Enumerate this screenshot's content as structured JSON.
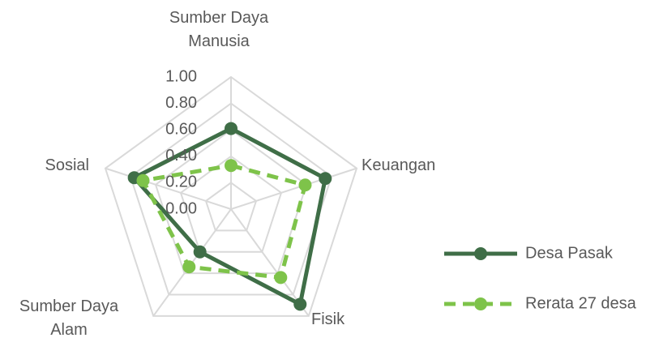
{
  "chart_data": {
    "type": "radar",
    "categories": [
      "Sumber Daya Manusia",
      "Keuangan",
      "Fisik",
      "Sumber Daya Alam",
      "Sosial"
    ],
    "series": [
      {
        "name": "Desa Pasak",
        "color": "#3f6e47",
        "values": [
          0.61,
          0.75,
          0.89,
          0.4,
          0.77
        ]
      },
      {
        "name": "Rerata 27 desa",
        "color": "#7ec34a",
        "values": [
          0.33,
          0.59,
          0.64,
          0.54,
          0.7
        ],
        "dashed": true
      }
    ],
    "ylim": [
      0,
      1
    ],
    "yticks": [
      {
        "value": 0,
        "label": "0.00"
      },
      {
        "value": 0.2,
        "label": "0.20"
      },
      {
        "value": 0.4,
        "label": "0.40"
      },
      {
        "value": 0.6,
        "label": "0.60"
      },
      {
        "value": 0.8,
        "label": "0.80"
      },
      {
        "value": 1,
        "label": "1.00"
      }
    ],
    "grid": true,
    "legend": "right"
  }
}
